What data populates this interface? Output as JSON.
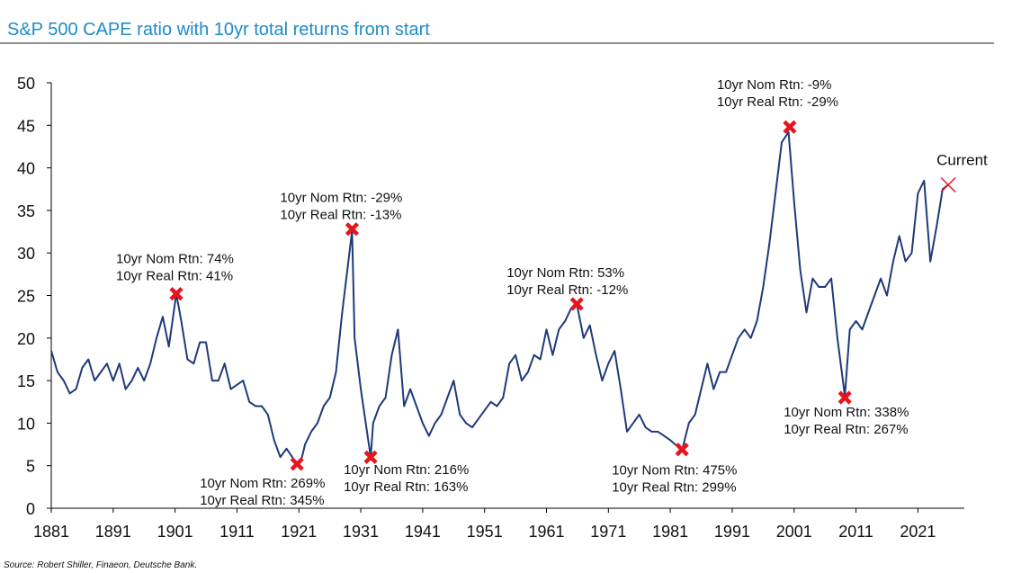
{
  "chart_data": {
    "type": "line",
    "title": "S&P 500 CAPE ratio with 10yr total returns from start",
    "source": "Source: Robert Shiller, Finaeon, Deutsche Bank.",
    "x": [
      1881,
      1882,
      1883,
      1884,
      1885,
      1886,
      1887,
      1888,
      1889,
      1890,
      1891,
      1892,
      1893,
      1894,
      1895,
      1896,
      1897,
      1898,
      1899,
      1900,
      1901.2,
      1902,
      1903,
      1904,
      1905,
      1906,
      1907,
      1908,
      1909,
      1910,
      1911,
      1912,
      1913,
      1914,
      1915,
      1916,
      1917,
      1918,
      1919,
      1920.7,
      1921.5,
      1922,
      1923,
      1924,
      1925,
      1926,
      1927,
      1928,
      1929.6,
      1930,
      1931,
      1932.6,
      1933,
      1934,
      1935,
      1936,
      1937,
      1938,
      1939,
      1940,
      1941,
      1942,
      1943,
      1944,
      1945,
      1946,
      1947,
      1948,
      1949,
      1950,
      1951,
      1952,
      1953,
      1954,
      1955,
      1956,
      1957,
      1958,
      1959,
      1960,
      1961,
      1962,
      1963,
      1964,
      1965,
      1965.9,
      1967,
      1968,
      1969,
      1970,
      1971,
      1972,
      1973,
      1974,
      1975,
      1976,
      1977,
      1978,
      1979,
      1980,
      1981,
      1982.9,
      1984,
      1985,
      1986,
      1987,
      1988,
      1989,
      1990,
      1991,
      1992,
      1993,
      1994,
      1995,
      1996,
      1997,
      1998,
      1999,
      2000.1,
      2001,
      2002,
      2003,
      2004,
      2005,
      2006,
      2007,
      2008,
      2009.2,
      2010,
      2011,
      2012,
      2013,
      2014,
      2015,
      2016,
      2017,
      2018,
      2019,
      2020,
      2021,
      2022,
      2023,
      2024,
      2025,
      2025.9
    ],
    "series": [
      {
        "name": "CAPE",
        "color": "#1f3a7a",
        "values": [
          18.5,
          16,
          15,
          13.5,
          14,
          16.5,
          17.5,
          15,
          16,
          17,
          15,
          17,
          14,
          15,
          16.5,
          15,
          17,
          20,
          22.5,
          19,
          25.2,
          22,
          17.5,
          17,
          19.5,
          19.5,
          15,
          15,
          17,
          14,
          14.5,
          15,
          12.5,
          12,
          12,
          11,
          8,
          6,
          7,
          5.2,
          6,
          7.5,
          9,
          10,
          12,
          13,
          16,
          23,
          32.6,
          20,
          14,
          6,
          10,
          12,
          13,
          18,
          21,
          12,
          14,
          12,
          10,
          8.5,
          10,
          11,
          13,
          15,
          11,
          10,
          9.5,
          10.5,
          11.5,
          12.5,
          12,
          13,
          17,
          18,
          15,
          16,
          18,
          17.5,
          21,
          18,
          21,
          22,
          23.5,
          24,
          20,
          21.5,
          18,
          15,
          17,
          18.5,
          14,
          9,
          10,
          11,
          9.5,
          9,
          9,
          8.5,
          8,
          6.8,
          10,
          11,
          14,
          17,
          14,
          16,
          16,
          18,
          20,
          21,
          20,
          22,
          26,
          31,
          37,
          43,
          44.2,
          36,
          28,
          23,
          27,
          26,
          26,
          27,
          20,
          13.2,
          21,
          22,
          21,
          23,
          25,
          27,
          25,
          29,
          32,
          29,
          30,
          37,
          38.5,
          29,
          33,
          37.5,
          38
        ]
      }
    ],
    "annotations": [
      {
        "x": 1901.2,
        "y": 25.2,
        "marker": "thick-cross",
        "text": [
          "10yr Nom Rtn: 74%",
          "10yr Real Rtn: 41%"
        ]
      },
      {
        "x": 1920.7,
        "y": 5.2,
        "marker": "thick-cross",
        "text": [
          "10yr Nom Rtn: 269%",
          "10yr Real Rtn: 345%"
        ]
      },
      {
        "x": 1929.6,
        "y": 32.8,
        "marker": "thick-cross",
        "text": [
          "10yr Nom Rtn: -29%",
          "10yr Real Rtn: -13%"
        ]
      },
      {
        "x": 1932.6,
        "y": 6,
        "marker": "thick-cross",
        "text": [
          "10yr Nom Rtn: 216%",
          "10yr Real Rtn: 163%"
        ]
      },
      {
        "x": 1965.9,
        "y": 24,
        "marker": "thick-cross",
        "text": [
          "10yr Nom Rtn: 53%",
          "10yr Real Rtn: -12%"
        ]
      },
      {
        "x": 1982.9,
        "y": 6.9,
        "marker": "thick-cross",
        "text": [
          "10yr Nom Rtn: 475%",
          "10yr Real Rtn: 299%"
        ]
      },
      {
        "x": 2000.3,
        "y": 44.8,
        "marker": "thick-cross",
        "text": [
          "10yr Nom Rtn: -9%",
          "10yr Real Rtn: -29%"
        ]
      },
      {
        "x": 2009.2,
        "y": 13,
        "marker": "thick-cross",
        "text": [
          "10yr Nom Rtn: 338%",
          "10yr Real Rtn: 267%"
        ]
      },
      {
        "x": 2025.9,
        "y": 38,
        "marker": "cross",
        "text": [
          "Current"
        ]
      }
    ],
    "xlim": [
      1881,
      2028.5
    ],
    "ylim": [
      0,
      50
    ],
    "xticks": [
      1881,
      1891,
      1901,
      1911,
      1921,
      1931,
      1941,
      1951,
      1961,
      1971,
      1981,
      1991,
      2001,
      2011,
      2021
    ],
    "yticks": [
      0,
      5,
      10,
      15,
      20,
      25,
      30,
      35,
      40,
      45,
      50
    ],
    "marker_color": "#e8141c"
  }
}
